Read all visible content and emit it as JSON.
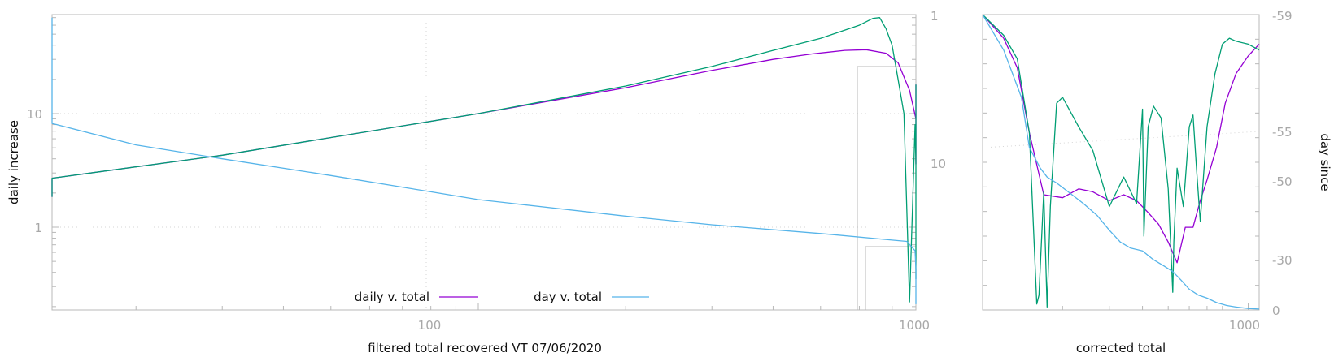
{
  "chart_data": [
    {
      "type": "line",
      "xlabel": "filtered total recovered VT 07/06/2020",
      "ylabel": "daily increase",
      "x_scale": "log",
      "y_scale": "log",
      "xlim": [
        1,
        1000
      ],
      "ylim": [
        0.2,
        70
      ],
      "x_ticks": [
        "100",
        "1000"
      ],
      "y_ticks": [
        "1",
        "10"
      ],
      "y2_ticks": [
        "1",
        "10"
      ],
      "grid": true,
      "legend_position": "bottom-center",
      "legend": [
        {
          "label": "daily v. total",
          "color": "#9400d3"
        },
        {
          "label": "day v. total",
          "color": "#56b4e9"
        }
      ],
      "series": [
        {
          "name": "daily v. total",
          "color": "#9400d3",
          "x": [
            3,
            10,
            30,
            100,
            200,
            300,
            400,
            480,
            560,
            620,
            680,
            720,
            760,
            800,
            840,
            880,
            900,
            930,
            960,
            1000
          ],
          "y": [
            1.85,
            2.7,
            4.3,
            10.0,
            16.9,
            24.0,
            30.0,
            33.5,
            36.0,
            36.5,
            34.0,
            28.0,
            16.0,
            9.0,
            6.5,
            5.2,
            4.5,
            3.6,
            4.5,
            18.0
          ]
        },
        {
          "name": "",
          "color": "#009e73",
          "x": [
            3,
            10,
            30,
            100,
            200,
            300,
            400,
            500,
            600,
            640,
            660,
            680,
            700,
            720,
            740,
            760,
            780,
            800,
            830,
            860,
            890,
            920,
            950,
            980,
            1000
          ],
          "y": [
            1.85,
            2.7,
            4.3,
            10.0,
            17.5,
            26.0,
            36.0,
            46.0,
            60.0,
            69.0,
            70.0,
            56.0,
            40.0,
            20.0,
            10.0,
            0.22,
            8.0,
            3.5,
            6.0,
            4.0,
            0.35,
            6.0,
            2.6,
            9.0,
            18.0
          ]
        },
        {
          "name": "day v. total",
          "color": "#56b4e9",
          "x": [
            1,
            2,
            3,
            5,
            8,
            12,
            20,
            30,
            50,
            80,
            100,
            200,
            300,
            500,
            700,
            750,
            780,
            820,
            860,
            900,
            940,
            970,
            1000
          ],
          "y": [
            70,
            38,
            28,
            18,
            11.5,
            8.2,
            5.3,
            4.0,
            2.85,
            2.05,
            1.75,
            1.25,
            1.05,
            0.88,
            0.77,
            0.75,
            0.62,
            0.42,
            0.35,
            0.3,
            0.26,
            0.23,
            0.21
          ]
        }
      ]
    },
    {
      "type": "line",
      "xlabel": "corrected total",
      "ylabel": "day since",
      "x_scale": "log",
      "xlim": [
        100,
        1100
      ],
      "y2lim": [
        -59,
        0
      ],
      "x_ticks": [
        "1000"
      ],
      "y2_ticks": [
        "-59",
        "-55",
        "-50",
        "-30",
        "0"
      ],
      "series": [
        {
          "name": "",
          "color": "#9400d3",
          "x": [
            100,
            120,
            135,
            150,
            170,
            200,
            230,
            260,
            300,
            340,
            380,
            420,
            460,
            500,
            540,
            580,
            620,
            660,
            700,
            760,
            820,
            900,
            1000,
            1100
          ],
          "y": [
            1.0,
            0.92,
            0.82,
            0.6,
            0.39,
            0.38,
            0.41,
            0.4,
            0.37,
            0.39,
            0.37,
            0.33,
            0.29,
            0.23,
            0.16,
            0.28,
            0.28,
            0.37,
            0.44,
            0.55,
            0.7,
            0.8,
            0.86,
            0.9
          ]
        },
        {
          "name": "",
          "color": "#009e73",
          "x": [
            100,
            120,
            135,
            150,
            160,
            163,
            170,
            175,
            180,
            190,
            200,
            230,
            260,
            300,
            340,
            380,
            400,
            405,
            420,
            440,
            470,
            500,
            520,
            525,
            540,
            570,
            600,
            620,
            640,
            660,
            700,
            750,
            800,
            850,
            900,
            1000,
            1100
          ],
          "y": [
            1.0,
            0.93,
            0.85,
            0.6,
            0.02,
            0.05,
            0.4,
            0.01,
            0.35,
            0.7,
            0.72,
            0.62,
            0.54,
            0.35,
            0.45,
            0.36,
            0.68,
            0.25,
            0.62,
            0.69,
            0.65,
            0.41,
            0.06,
            0.23,
            0.48,
            0.35,
            0.62,
            0.66,
            0.47,
            0.3,
            0.62,
            0.8,
            0.9,
            0.92,
            0.91,
            0.9,
            0.88
          ]
        },
        {
          "name": "",
          "color": "#56b4e9",
          "x": [
            100,
            120,
            140,
            150,
            165,
            175,
            190,
            210,
            240,
            270,
            300,
            330,
            360,
            400,
            440,
            480,
            520,
            560,
            600,
            650,
            700,
            760,
            830,
            900,
            1000,
            1100
          ],
          "y": [
            1.0,
            0.88,
            0.72,
            0.55,
            0.48,
            0.45,
            0.43,
            0.4,
            0.36,
            0.32,
            0.27,
            0.23,
            0.21,
            0.2,
            0.17,
            0.15,
            0.13,
            0.1,
            0.07,
            0.05,
            0.04,
            0.025,
            0.015,
            0.01,
            0.005,
            0.003
          ]
        }
      ]
    }
  ]
}
